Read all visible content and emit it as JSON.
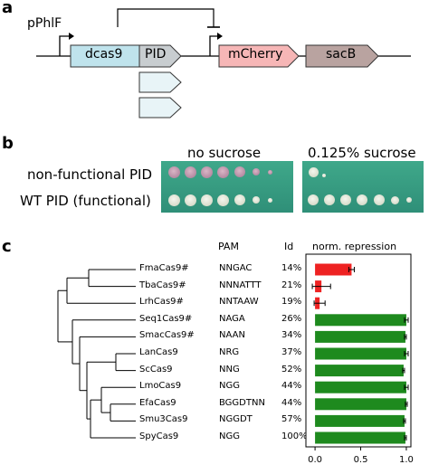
{
  "panel_a": {
    "letter": "a",
    "promoter1": "pPhlF",
    "gene_dcas9": "dcas9",
    "gene_pid": "PID",
    "gene_mcherry": "mCherry",
    "gene_sacb": "sacB",
    "colors": {
      "dcas9": "#bfe3ec",
      "pid": "#c8cdd0",
      "mcherry": "#f6b6b6",
      "sacb": "#b9a3a0",
      "variant": "#e8f4f7"
    }
  },
  "panel_b": {
    "letter": "b",
    "col1": "no sucrose",
    "col2": "0.125% sucrose",
    "row1": "non-functional PID",
    "row2": "WT PID (functional)"
  },
  "panel_c": {
    "letter": "c",
    "headers": {
      "pam": "PAM",
      "id": "Id",
      "repr": "norm. repression"
    },
    "rows": [
      {
        "name": "FmaCas9#",
        "pam": "NNGAC",
        "id": "14%"
      },
      {
        "name": "TbaCas9#",
        "pam": "NNNATTT",
        "id": "21%"
      },
      {
        "name": "LrhCas9#",
        "pam": "NNTAAW",
        "id": "19%"
      },
      {
        "name": "Seq1Cas9#",
        "pam": "NAGA",
        "id": "26%"
      },
      {
        "name": "SmacCas9#",
        "pam": "NAAN",
        "id": "34%"
      },
      {
        "name": "LanCas9",
        "pam": "NRG",
        "id": "37%"
      },
      {
        "name": "ScCas9",
        "pam": "NNG",
        "id": "52%"
      },
      {
        "name": "LmoCas9",
        "pam": "NGG",
        "id": "44%"
      },
      {
        "name": "EfaCas9",
        "pam": "BGGDTNN",
        "id": "44%"
      },
      {
        "name": "Smu3Cas9",
        "pam": "NGGDT",
        "id": "57%"
      },
      {
        "name": "SpyCas9",
        "pam": "NGG",
        "id": "100%"
      }
    ]
  },
  "chart_data": {
    "type": "bar",
    "orientation": "horizontal",
    "categories": [
      "FmaCas9#",
      "TbaCas9#",
      "LrhCas9#",
      "Seq1Cas9#",
      "SmacCas9#",
      "LanCas9",
      "ScCas9",
      "LmoCas9",
      "EfaCas9",
      "Smu3Cas9",
      "SpyCas9"
    ],
    "values": [
      0.4,
      0.07,
      0.05,
      1.0,
      0.99,
      1.0,
      0.97,
      1.0,
      1.0,
      0.98,
      0.99
    ],
    "errors": [
      0.03,
      0.1,
      0.06,
      0.02,
      0.01,
      0.02,
      0.01,
      0.02,
      0.01,
      0.01,
      0.01
    ],
    "bar_colors": [
      "#ee2222",
      "#ee2222",
      "#ee2222",
      "#1e8a1e",
      "#1e8a1e",
      "#1e8a1e",
      "#1e8a1e",
      "#1e8a1e",
      "#1e8a1e",
      "#1e8a1e",
      "#1e8a1e"
    ],
    "xlabel": "norm. repression",
    "xlim": [
      -0.1,
      1.05
    ],
    "xticks": [
      "0.0",
      "0.5",
      "1.0"
    ],
    "xtick_values": [
      0.0,
      0.5,
      1.0
    ]
  }
}
